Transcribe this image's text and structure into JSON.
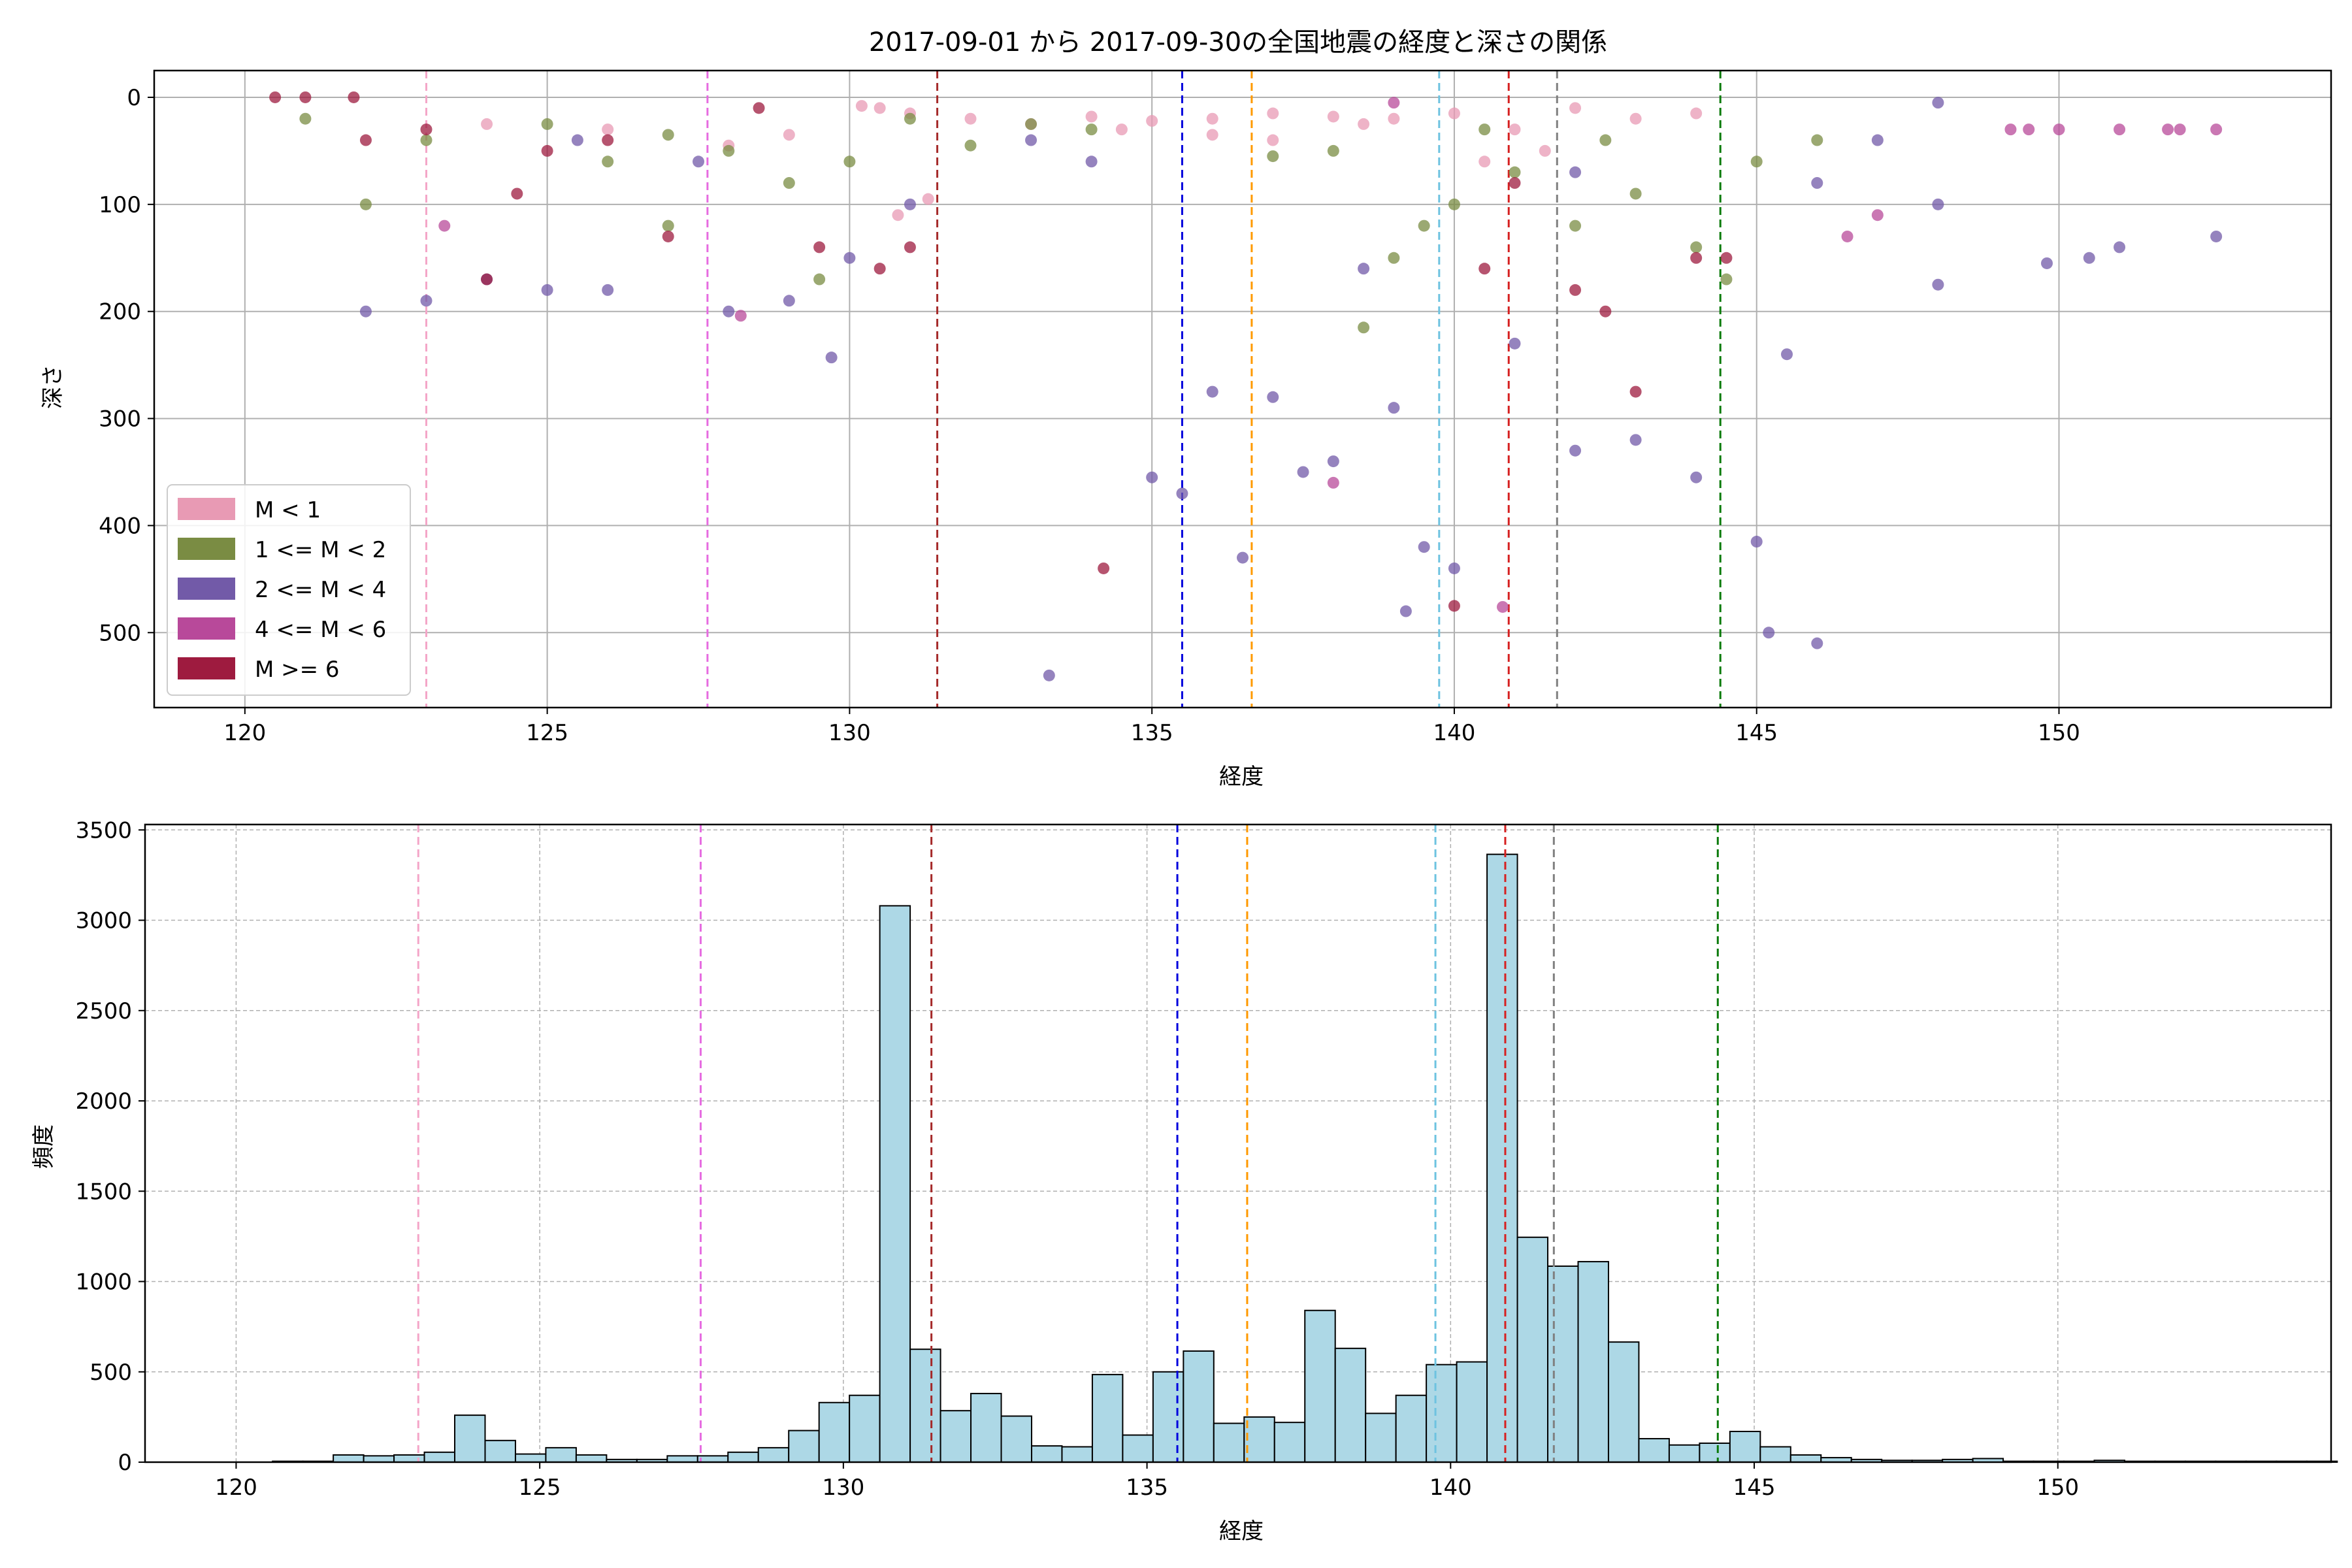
{
  "figure": {
    "title": "2017-09-01 から 2017-09-30の全国地震の経度と深さの関係"
  },
  "chart_data": [
    {
      "type": "scatter",
      "xlabel": "経度",
      "ylabel": "深さ",
      "xlim": [
        118.5,
        154.5
      ],
      "ylim": [
        570,
        -25
      ],
      "y_inverted": true,
      "xticks": [
        120,
        125,
        130,
        135,
        140,
        145,
        150
      ],
      "yticks": [
        0,
        100,
        200,
        300,
        400,
        500
      ],
      "grid": true,
      "legend_position": "lower-left",
      "legend": [
        {
          "label": "M < 1",
          "color": "#e89ab4"
        },
        {
          "label": "1 <= M < 2",
          "color": "#7a8c43"
        },
        {
          "label": "2 <= M < 4",
          "color": "#725aa8"
        },
        {
          "label": "4 <= M < 6",
          "color": "#b8499a"
        },
        {
          "label": "M >= 6",
          "color": "#9e1b3f"
        }
      ],
      "series": [
        {
          "name": "M < 1",
          "color": "#e89ab4",
          "points": [
            [
              130.5,
              10
            ],
            [
              131,
              15
            ],
            [
              132,
              20
            ],
            [
              133,
              25
            ],
            [
              134,
              18
            ],
            [
              135,
              22
            ],
            [
              136,
              20
            ],
            [
              137,
              15
            ],
            [
              138,
              18
            ],
            [
              138.5,
              25
            ],
            [
              139,
              20
            ],
            [
              140,
              15
            ],
            [
              141,
              30
            ],
            [
              142,
              10
            ],
            [
              143,
              20
            ],
            [
              144,
              15
            ],
            [
              129,
              35
            ],
            [
              128,
              45
            ],
            [
              131.3,
              95
            ],
            [
              130.8,
              110
            ],
            [
              130.2,
              8
            ],
            [
              124,
              25
            ],
            [
              126,
              30
            ],
            [
              140.5,
              60
            ],
            [
              141.5,
              50
            ],
            [
              137,
              40
            ],
            [
              136,
              35
            ],
            [
              134.5,
              30
            ]
          ]
        },
        {
          "name": "1 <= M < 2",
          "color": "#7a8c43",
          "points": [
            [
              121,
              20
            ],
            [
              123,
              40
            ],
            [
              125,
              25
            ],
            [
              126,
              60
            ],
            [
              127,
              35
            ],
            [
              128,
              50
            ],
            [
              129,
              80
            ],
            [
              130,
              60
            ],
            [
              131,
              20
            ],
            [
              132,
              45
            ],
            [
              133,
              25
            ],
            [
              134,
              30
            ],
            [
              137,
              55
            ],
            [
              138,
              50
            ],
            [
              139,
              150
            ],
            [
              139.5,
              120
            ],
            [
              140,
              100
            ],
            [
              141,
              70
            ],
            [
              142,
              120
            ],
            [
              143,
              90
            ],
            [
              144,
              140
            ],
            [
              145,
              60
            ],
            [
              146,
              40
            ],
            [
              144.5,
              170
            ],
            [
              138.5,
              215
            ],
            [
              122,
              100
            ],
            [
              127,
              120
            ],
            [
              129.5,
              170
            ],
            [
              140.5,
              30
            ],
            [
              142.5,
              40
            ]
          ]
        },
        {
          "name": "2 <= M < 4",
          "color": "#725aa8",
          "points": [
            [
              122,
              200
            ],
            [
              123,
              190
            ],
            [
              124,
              170
            ],
            [
              125,
              180
            ],
            [
              126,
              180
            ],
            [
              128,
              200
            ],
            [
              129,
              190
            ],
            [
              129.7,
              243
            ],
            [
              130,
              150
            ],
            [
              131,
              100
            ],
            [
              133.3,
              540
            ],
            [
              135,
              355
            ],
            [
              135.5,
              370
            ],
            [
              136,
              275
            ],
            [
              136.5,
              430
            ],
            [
              137,
              280
            ],
            [
              137.5,
              350
            ],
            [
              138,
              340
            ],
            [
              139,
              290
            ],
            [
              139.2,
              480
            ],
            [
              139.5,
              420
            ],
            [
              140,
              440
            ],
            [
              141,
              230
            ],
            [
              142,
              330
            ],
            [
              143,
              320
            ],
            [
              144,
              355
            ],
            [
              145,
              415
            ],
            [
              145.2,
              500
            ],
            [
              145.5,
              240
            ],
            [
              146,
              510
            ],
            [
              147,
              40
            ],
            [
              148,
              5
            ],
            [
              148,
              100
            ],
            [
              148,
              175
            ],
            [
              149.8,
              155
            ],
            [
              150.5,
              150
            ],
            [
              151,
              140
            ],
            [
              152.6,
              130
            ],
            [
              125.5,
              40
            ],
            [
              127.5,
              60
            ],
            [
              133,
              40
            ],
            [
              134,
              60
            ],
            [
              138.5,
              160
            ],
            [
              142,
              70
            ],
            [
              146,
              80
            ]
          ]
        },
        {
          "name": "4 <= M < 6",
          "color": "#b8499a",
          "points": [
            [
              128.2,
              204
            ],
            [
              138,
              360
            ],
            [
              140.8,
              476
            ],
            [
              149.2,
              30
            ],
            [
              149.5,
              30
            ],
            [
              150,
              30
            ],
            [
              151,
              30
            ],
            [
              151.8,
              30
            ],
            [
              152,
              30
            ],
            [
              152.6,
              30
            ],
            [
              147,
              110
            ],
            [
              146.5,
              130
            ],
            [
              123.3,
              120
            ],
            [
              139,
              5
            ]
          ]
        },
        {
          "name": "M >= 6",
          "color": "#9e1b3f",
          "points": [
            [
              120.5,
              0
            ],
            [
              121,
              0
            ],
            [
              121.8,
              0
            ],
            [
              122,
              40
            ],
            [
              123,
              30
            ],
            [
              124,
              170
            ],
            [
              125,
              50
            ],
            [
              126,
              40
            ],
            [
              127,
              130
            ],
            [
              128.5,
              10
            ],
            [
              130.5,
              160
            ],
            [
              131,
              140
            ],
            [
              134.2,
              440
            ],
            [
              140,
              475
            ],
            [
              140.5,
              160
            ],
            [
              141,
              80
            ],
            [
              142,
              180
            ],
            [
              142.5,
              200
            ],
            [
              143,
              275
            ],
            [
              144,
              150
            ],
            [
              144.5,
              150
            ],
            [
              129.5,
              140
            ],
            [
              124.5,
              90
            ]
          ]
        }
      ],
      "reference_lines_x": [
        {
          "x": 123.0,
          "color": "#f4a6c8"
        },
        {
          "x": 127.65,
          "color": "#e66be0"
        },
        {
          "x": 131.45,
          "color": "#a52a2a"
        },
        {
          "x": 135.5,
          "color": "#0000dd"
        },
        {
          "x": 136.65,
          "color": "#ff9900"
        },
        {
          "x": 139.75,
          "color": "#6ec3e0"
        },
        {
          "x": 140.9,
          "color": "#d62020"
        },
        {
          "x": 141.7,
          "color": "#808080"
        },
        {
          "x": 144.4,
          "color": "#0a7a0a"
        }
      ]
    },
    {
      "type": "bar",
      "subtype": "histogram",
      "xlabel": "経度",
      "ylabel": "頻度",
      "xlim": [
        118.5,
        154.5
      ],
      "ylim": [
        0,
        3530
      ],
      "xticks": [
        120,
        125,
        130,
        135,
        140,
        145,
        150
      ],
      "yticks": [
        0,
        500,
        1000,
        1500,
        2000,
        2500,
        3000,
        3500
      ],
      "grid": true,
      "bar_color": "#add8e6",
      "edge_color": "#000000",
      "bin_start": 120.1,
      "bin_width": 0.5,
      "values": [
        0,
        5,
        5,
        40,
        35,
        40,
        55,
        260,
        120,
        45,
        80,
        40,
        15,
        15,
        35,
        35,
        55,
        80,
        175,
        330,
        370,
        3080,
        625,
        285,
        380,
        255,
        90,
        85,
        485,
        150,
        500,
        615,
        215,
        250,
        220,
        840,
        630,
        270,
        370,
        540,
        555,
        3365,
        1245,
        1085,
        1110,
        665,
        130,
        95,
        105,
        170,
        85,
        40,
        25,
        15,
        10,
        10,
        15,
        20,
        5,
        5,
        5,
        10,
        5,
        5,
        5,
        5,
        5,
        5,
        5
      ]
    }
  ]
}
